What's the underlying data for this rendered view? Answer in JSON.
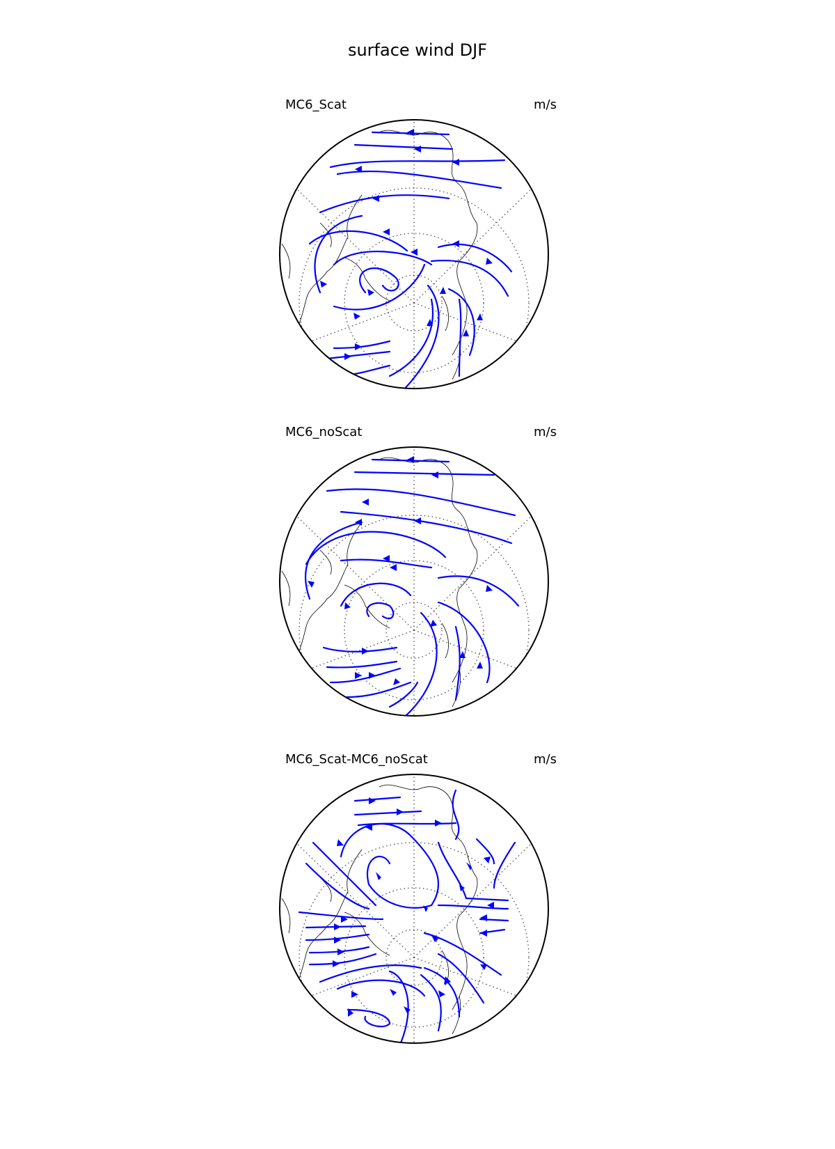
{
  "figure": {
    "title": "surface wind DJF"
  },
  "panels": [
    {
      "id": "p1",
      "name": "MC6_Scat",
      "units": "m/s"
    },
    {
      "id": "p2",
      "name": "MC6_noScat",
      "units": "m/s"
    },
    {
      "id": "p3",
      "name": "MC6_Scat-MC6_noScat",
      "units": "m/s"
    }
  ],
  "map": {
    "projection": "polar stereographic, northern hemisphere",
    "gridlines": "dotted",
    "coastline_color": "#000000",
    "streamline_color": "#0000ff"
  }
}
